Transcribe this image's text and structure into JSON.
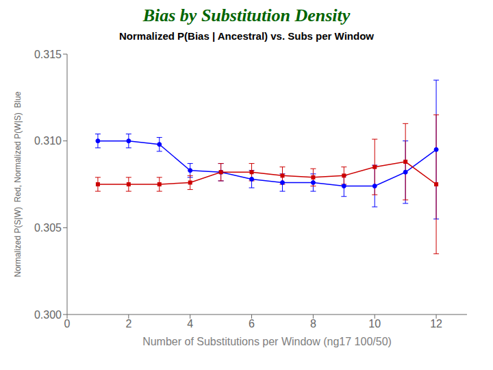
{
  "chart_data": {
    "type": "line",
    "title": "Bias by Substitution Density",
    "subtitle": "Normalized P(Bias | Ancestral) vs. Subs per Window",
    "xlabel": "Number of Substitutions per Window (ng17 100/50)",
    "ylabel": "Normalized P(S|W)  Red, Normalized P(W|S)  Blue",
    "title_color": "#006400",
    "x": [
      1,
      2,
      3,
      4,
      5,
      6,
      7,
      8,
      9,
      10,
      11,
      12
    ],
    "series": [
      {
        "color": "#0000FF",
        "marker": "circle",
        "values": [
          0.31,
          0.31,
          0.3098,
          0.3083,
          0.3082,
          0.3078,
          0.3076,
          0.3076,
          0.3074,
          0.3074,
          0.3082,
          0.3095
        ],
        "error": [
          0.0004,
          0.0004,
          0.0004,
          0.0004,
          0.0005,
          0.0005,
          0.0005,
          0.0005,
          0.0006,
          0.0012,
          0.0018,
          0.004
        ]
      },
      {
        "color": "#CC0000",
        "marker": "square",
        "values": [
          0.3075,
          0.3075,
          0.3075,
          0.3076,
          0.3082,
          0.3082,
          0.308,
          0.3079,
          0.308,
          0.3085,
          0.3088,
          0.3075
        ],
        "error": [
          0.0004,
          0.0004,
          0.0004,
          0.0004,
          0.0005,
          0.0005,
          0.0005,
          0.0005,
          0.0005,
          0.0016,
          0.0022,
          0.004
        ]
      }
    ],
    "xlim": [
      0,
      13
    ],
    "xticks": [
      0,
      2,
      4,
      6,
      8,
      10,
      12
    ],
    "ylim": [
      0.3,
      0.315
    ],
    "yticks": [
      {
        "value": 0.3,
        "label": "0.300"
      },
      {
        "value": 0.305,
        "label": "0.305"
      },
      {
        "value": 0.31,
        "label": "0.310"
      },
      {
        "value": 0.315,
        "label": "0.315"
      }
    ],
    "grid": false
  }
}
